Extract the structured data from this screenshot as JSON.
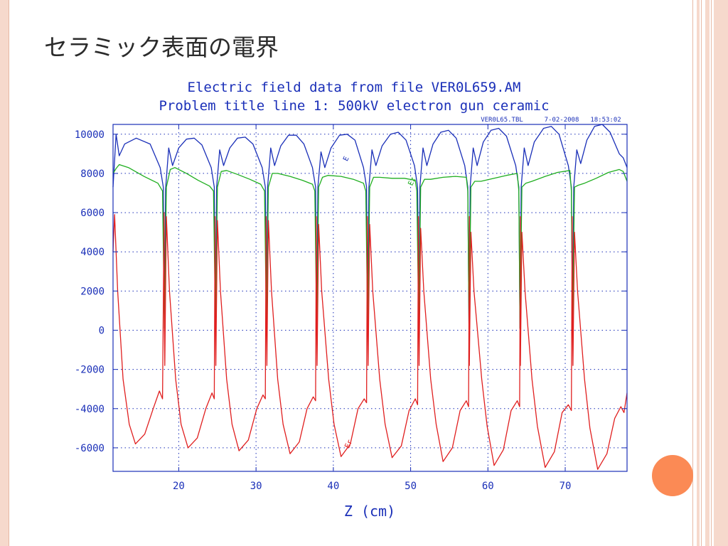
{
  "slide": {
    "title": "セラミック表面の電界"
  },
  "chart_data": {
    "type": "line",
    "title": "Electric field data from file VER0L659.AM",
    "subtitle": "Problem title line 1: 500kV electron gun ceramic",
    "file_label": "VER0L65.TBL",
    "date_label": "7-02-2008",
    "time_label": "18:53:02",
    "xlabel": "Z (cm)",
    "ylabel": "",
    "xlim": [
      11.5,
      78
    ],
    "ylim": [
      -7200,
      10500
    ],
    "xticks": [
      20,
      30,
      40,
      50,
      60,
      70
    ],
    "yticks": [
      10000,
      8000,
      6000,
      4000,
      2000,
      0,
      -2000,
      -4000,
      -6000
    ],
    "ytick_labels": [
      "10000",
      "8000",
      "6000",
      "4000",
      "2000",
      "0",
      "-2000",
      "-4000",
      "-6000"
    ],
    "grid": true,
    "gaps": [
      18.2,
      24.8,
      31.4,
      37.9,
      44.5,
      51.1,
      57.6,
      64.2,
      71.0
    ],
    "series": [
      {
        "name": "E",
        "color": "#1a2fb8",
        "label_at": [
          41.8,
          8600
        ],
        "points": [
          [
            11.5,
            7300
          ],
          [
            11.9,
            10000
          ],
          [
            12.3,
            8900
          ],
          [
            13.0,
            9500
          ],
          [
            14.5,
            9800
          ],
          [
            16.3,
            9500
          ],
          [
            17.6,
            8300
          ],
          [
            18.0,
            7300
          ],
          [
            18.15,
            100
          ],
          [
            18.3,
            7200
          ],
          [
            18.7,
            9300
          ],
          [
            19.2,
            8400
          ],
          [
            20.0,
            9300
          ],
          [
            21.0,
            9750
          ],
          [
            22.0,
            9800
          ],
          [
            23.0,
            9450
          ],
          [
            24.2,
            8300
          ],
          [
            24.6,
            7300
          ],
          [
            24.75,
            100
          ],
          [
            24.9,
            7300
          ],
          [
            25.3,
            9200
          ],
          [
            25.8,
            8400
          ],
          [
            26.6,
            9300
          ],
          [
            27.6,
            9800
          ],
          [
            28.6,
            9850
          ],
          [
            29.6,
            9500
          ],
          [
            30.8,
            8300
          ],
          [
            31.2,
            7300
          ],
          [
            31.35,
            100
          ],
          [
            31.5,
            7300
          ],
          [
            31.9,
            9300
          ],
          [
            32.4,
            8400
          ],
          [
            33.2,
            9400
          ],
          [
            34.2,
            9950
          ],
          [
            35.2,
            9950
          ],
          [
            36.2,
            9500
          ],
          [
            37.3,
            8300
          ],
          [
            37.7,
            7300
          ],
          [
            37.85,
            100
          ],
          [
            38.0,
            7300
          ],
          [
            38.4,
            9100
          ],
          [
            38.9,
            8300
          ],
          [
            39.7,
            9300
          ],
          [
            40.8,
            9950
          ],
          [
            41.8,
            10000
          ],
          [
            42.8,
            9700
          ],
          [
            43.9,
            8300
          ],
          [
            44.3,
            7300
          ],
          [
            44.45,
            100
          ],
          [
            44.6,
            7300
          ],
          [
            45.0,
            9200
          ],
          [
            45.5,
            8400
          ],
          [
            46.3,
            9400
          ],
          [
            47.4,
            10000
          ],
          [
            48.4,
            10100
          ],
          [
            49.4,
            9700
          ],
          [
            50.5,
            8400
          ],
          [
            50.9,
            7300
          ],
          [
            51.05,
            100
          ],
          [
            51.2,
            7300
          ],
          [
            51.6,
            9300
          ],
          [
            52.1,
            8400
          ],
          [
            52.9,
            9500
          ],
          [
            53.9,
            10100
          ],
          [
            54.9,
            10200
          ],
          [
            55.9,
            9800
          ],
          [
            57.0,
            8400
          ],
          [
            57.4,
            7300
          ],
          [
            57.55,
            100
          ],
          [
            57.7,
            7300
          ],
          [
            58.1,
            9300
          ],
          [
            58.6,
            8400
          ],
          [
            59.4,
            9600
          ],
          [
            60.4,
            10200
          ],
          [
            61.4,
            10300
          ],
          [
            62.4,
            9900
          ],
          [
            63.6,
            8400
          ],
          [
            64.0,
            7300
          ],
          [
            64.15,
            100
          ],
          [
            64.3,
            7300
          ],
          [
            64.7,
            9300
          ],
          [
            65.2,
            8400
          ],
          [
            66.0,
            9600
          ],
          [
            67.2,
            10300
          ],
          [
            68.2,
            10400
          ],
          [
            69.2,
            10000
          ],
          [
            70.4,
            8400
          ],
          [
            70.8,
            7300
          ],
          [
            70.95,
            100
          ],
          [
            71.1,
            7300
          ],
          [
            71.5,
            9200
          ],
          [
            72.0,
            8500
          ],
          [
            72.8,
            9700
          ],
          [
            73.8,
            10400
          ],
          [
            74.8,
            10500
          ],
          [
            75.8,
            10100
          ],
          [
            77.0,
            9000
          ],
          [
            77.5,
            8800
          ],
          [
            78.0,
            8300
          ]
        ]
      },
      {
        "name": "Ez",
        "color": "#1fae1f",
        "label_at": [
          50.2,
          7350
        ],
        "points": [
          [
            11.5,
            8000
          ],
          [
            11.9,
            8250
          ],
          [
            12.3,
            8450
          ],
          [
            13.5,
            8300
          ],
          [
            15.5,
            7850
          ],
          [
            17.3,
            7500
          ],
          [
            17.9,
            7100
          ],
          [
            18.15,
            100
          ],
          [
            18.4,
            7300
          ],
          [
            18.9,
            8200
          ],
          [
            19.5,
            8300
          ],
          [
            21.0,
            8000
          ],
          [
            22.5,
            7650
          ],
          [
            24.0,
            7350
          ],
          [
            24.5,
            7100
          ],
          [
            24.75,
            100
          ],
          [
            25.0,
            7300
          ],
          [
            25.5,
            8100
          ],
          [
            26.2,
            8150
          ],
          [
            27.6,
            7950
          ],
          [
            29.2,
            7700
          ],
          [
            30.6,
            7450
          ],
          [
            31.1,
            7100
          ],
          [
            31.35,
            100
          ],
          [
            31.6,
            7300
          ],
          [
            32.1,
            8000
          ],
          [
            32.8,
            8000
          ],
          [
            34.4,
            7850
          ],
          [
            36.0,
            7650
          ],
          [
            37.3,
            7450
          ],
          [
            37.6,
            7100
          ],
          [
            37.85,
            100
          ],
          [
            38.1,
            7300
          ],
          [
            38.6,
            7800
          ],
          [
            39.3,
            7900
          ],
          [
            41.0,
            7850
          ],
          [
            42.6,
            7700
          ],
          [
            43.9,
            7500
          ],
          [
            44.2,
            7100
          ],
          [
            44.45,
            100
          ],
          [
            44.7,
            7300
          ],
          [
            45.2,
            7800
          ],
          [
            46.0,
            7800
          ],
          [
            47.6,
            7750
          ],
          [
            49.2,
            7750
          ],
          [
            50.6,
            7650
          ],
          [
            50.8,
            7100
          ],
          [
            51.05,
            100
          ],
          [
            51.3,
            7300
          ],
          [
            51.8,
            7700
          ],
          [
            52.6,
            7700
          ],
          [
            54.2,
            7800
          ],
          [
            55.8,
            7850
          ],
          [
            57.2,
            7800
          ],
          [
            57.4,
            7100
          ],
          [
            57.55,
            100
          ],
          [
            57.8,
            7300
          ],
          [
            58.3,
            7600
          ],
          [
            59.1,
            7600
          ],
          [
            60.8,
            7750
          ],
          [
            62.4,
            7900
          ],
          [
            63.8,
            8000
          ],
          [
            64.0,
            7100
          ],
          [
            64.15,
            100
          ],
          [
            64.4,
            7300
          ],
          [
            64.9,
            7500
          ],
          [
            65.7,
            7600
          ],
          [
            67.4,
            7850
          ],
          [
            69.0,
            8050
          ],
          [
            70.6,
            8150
          ],
          [
            70.8,
            7100
          ],
          [
            70.95,
            100
          ],
          [
            71.2,
            7300
          ],
          [
            71.7,
            7400
          ],
          [
            72.5,
            7500
          ],
          [
            74.0,
            7750
          ],
          [
            75.6,
            8050
          ],
          [
            77.0,
            8200
          ],
          [
            77.5,
            8100
          ],
          [
            78.0,
            7600
          ]
        ]
      },
      {
        "name": "Er",
        "color": "#e01f1f",
        "label_at": [
          42.0,
          -6050
        ],
        "points": [
          [
            11.5,
            4000
          ],
          [
            11.7,
            5900
          ],
          [
            12.1,
            2000
          ],
          [
            12.8,
            -2500
          ],
          [
            13.6,
            -4800
          ],
          [
            14.4,
            -5800
          ],
          [
            15.6,
            -5300
          ],
          [
            16.7,
            -4000
          ],
          [
            17.5,
            -3100
          ],
          [
            17.9,
            -3500
          ],
          [
            18.1,
            6000
          ],
          [
            18.15,
            0
          ],
          [
            18.2,
            -1800
          ],
          [
            18.4,
            5800
          ],
          [
            18.8,
            2000
          ],
          [
            19.6,
            -2500
          ],
          [
            20.3,
            -4800
          ],
          [
            21.2,
            -6000
          ],
          [
            22.4,
            -5500
          ],
          [
            23.5,
            -4000
          ],
          [
            24.3,
            -3200
          ],
          [
            24.6,
            -3500
          ],
          [
            24.7,
            5800
          ],
          [
            24.75,
            0
          ],
          [
            24.8,
            -1800
          ],
          [
            25.0,
            5600
          ],
          [
            25.4,
            2000
          ],
          [
            26.2,
            -2500
          ],
          [
            26.9,
            -4800
          ],
          [
            27.8,
            -6150
          ],
          [
            29.0,
            -5600
          ],
          [
            30.1,
            -4000
          ],
          [
            30.9,
            -3300
          ],
          [
            31.2,
            -3500
          ],
          [
            31.3,
            5800
          ],
          [
            31.35,
            0
          ],
          [
            31.4,
            -1800
          ],
          [
            31.6,
            5600
          ],
          [
            32.0,
            2000
          ],
          [
            32.8,
            -2500
          ],
          [
            33.5,
            -4800
          ],
          [
            34.4,
            -6300
          ],
          [
            35.6,
            -5700
          ],
          [
            36.6,
            -4000
          ],
          [
            37.4,
            -3400
          ],
          [
            37.7,
            -3600
          ],
          [
            37.8,
            5800
          ],
          [
            37.85,
            0
          ],
          [
            37.9,
            -1800
          ],
          [
            38.1,
            5400
          ],
          [
            38.5,
            2000
          ],
          [
            39.4,
            -2500
          ],
          [
            40.1,
            -4800
          ],
          [
            41.0,
            -6450
          ],
          [
            42.2,
            -5800
          ],
          [
            43.2,
            -4000
          ],
          [
            44.0,
            -3500
          ],
          [
            44.3,
            -3700
          ],
          [
            44.4,
            5800
          ],
          [
            44.45,
            0
          ],
          [
            44.5,
            -1800
          ],
          [
            44.7,
            5400
          ],
          [
            45.1,
            2000
          ],
          [
            46.0,
            -2500
          ],
          [
            46.7,
            -4800
          ],
          [
            47.6,
            -6500
          ],
          [
            48.8,
            -5900
          ],
          [
            49.8,
            -4100
          ],
          [
            50.6,
            -3500
          ],
          [
            50.9,
            -3800
          ],
          [
            51.0,
            5800
          ],
          [
            51.05,
            0
          ],
          [
            51.1,
            -1800
          ],
          [
            51.3,
            5200
          ],
          [
            51.7,
            2000
          ],
          [
            52.6,
            -2500
          ],
          [
            53.3,
            -4800
          ],
          [
            54.2,
            -6700
          ],
          [
            55.4,
            -6000
          ],
          [
            56.4,
            -4100
          ],
          [
            57.2,
            -3600
          ],
          [
            57.5,
            -3900
          ],
          [
            57.6,
            5800
          ],
          [
            57.55,
            0
          ],
          [
            57.6,
            -1800
          ],
          [
            57.8,
            5000
          ],
          [
            58.2,
            2000
          ],
          [
            59.2,
            -2500
          ],
          [
            59.9,
            -4900
          ],
          [
            60.8,
            -6900
          ],
          [
            62.0,
            -6100
          ],
          [
            63.0,
            -4100
          ],
          [
            63.8,
            -3600
          ],
          [
            64.1,
            -3900
          ],
          [
            64.2,
            5800
          ],
          [
            64.15,
            0
          ],
          [
            64.2,
            -1800
          ],
          [
            64.4,
            5000
          ],
          [
            64.8,
            2000
          ],
          [
            65.7,
            -2500
          ],
          [
            66.4,
            -4900
          ],
          [
            67.4,
            -7000
          ],
          [
            68.6,
            -6200
          ],
          [
            69.6,
            -4200
          ],
          [
            70.4,
            -3800
          ],
          [
            70.8,
            -4100
          ],
          [
            70.9,
            5800
          ],
          [
            70.95,
            0
          ],
          [
            71.0,
            -1800
          ],
          [
            71.2,
            5000
          ],
          [
            71.6,
            2000
          ],
          [
            72.5,
            -2500
          ],
          [
            73.2,
            -5000
          ],
          [
            74.2,
            -7100
          ],
          [
            75.4,
            -6300
          ],
          [
            76.4,
            -4500
          ],
          [
            77.2,
            -3900
          ],
          [
            77.6,
            -4200
          ],
          [
            78.0,
            -3200
          ]
        ]
      }
    ]
  }
}
